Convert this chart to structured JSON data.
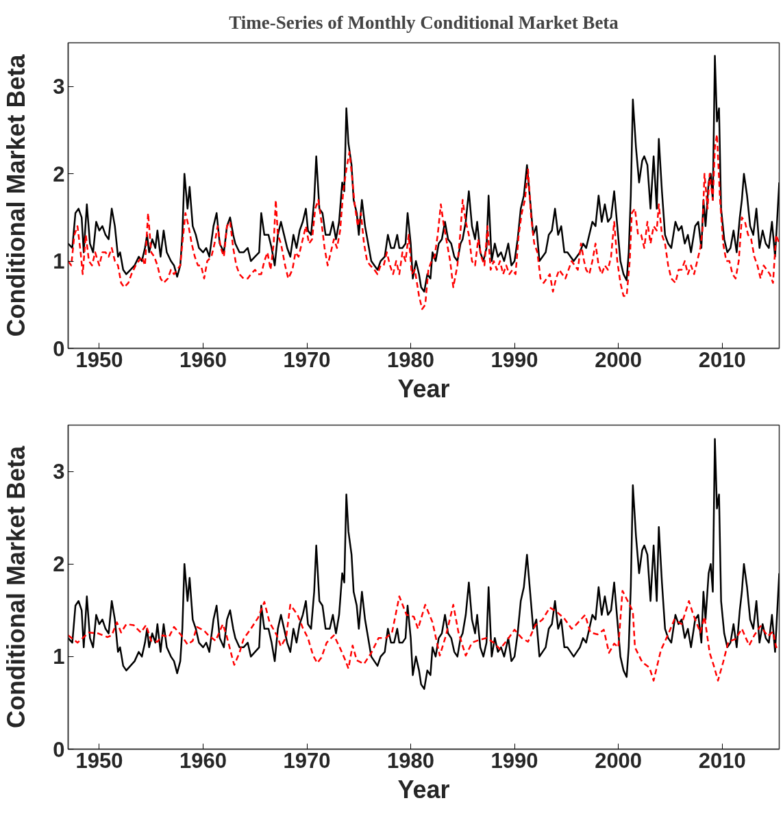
{
  "chart_data": [
    {
      "type": "line",
      "title": "Time-Series of Monthly Conditional Market Beta",
      "xlabel": "Year",
      "ylabel": "Conditional Market Beta",
      "xlim": [
        1947,
        2015.5
      ],
      "ylim": [
        0,
        3.5
      ],
      "xticks": [
        1950,
        1960,
        1970,
        1980,
        1990,
        2000,
        2010
      ],
      "yticks": [
        0,
        1,
        2,
        3
      ],
      "grid": false,
      "marker": "none",
      "series": [
        {
          "color": "#000000",
          "line_style": "solid",
          "x": [
            1947.0,
            1947.4,
            1947.7,
            1948.0,
            1948.3,
            1948.5,
            1948.8,
            1949.1,
            1949.4,
            1949.7,
            1950.0,
            1950.3,
            1950.6,
            1950.9,
            1951.2,
            1951.5,
            1951.8,
            1952.0,
            1952.3,
            1952.6,
            1953.0,
            1953.4,
            1953.8,
            1954.1,
            1954.4,
            1954.6,
            1954.8,
            1955.1,
            1955.4,
            1955.6,
            1955.9,
            1956.2,
            1956.5,
            1956.9,
            1957.2,
            1957.5,
            1957.8,
            1958.0,
            1958.2,
            1958.5,
            1958.7,
            1959.0,
            1959.3,
            1959.6,
            1960.0,
            1960.3,
            1960.6,
            1961.0,
            1961.3,
            1961.6,
            1962.0,
            1962.3,
            1962.6,
            1962.9,
            1963.1,
            1963.5,
            1963.9,
            1964.3,
            1964.6,
            1965.0,
            1965.4,
            1965.6,
            1965.9,
            1966.3,
            1966.6,
            1966.9,
            1967.2,
            1967.5,
            1967.8,
            1968.1,
            1968.4,
            1968.7,
            1969.0,
            1969.3,
            1969.6,
            1969.9,
            1970.1,
            1970.4,
            1970.7,
            1970.9,
            1971.2,
            1971.5,
            1971.8,
            1972.2,
            1972.5,
            1972.8,
            1973.1,
            1973.4,
            1973.6,
            1973.8,
            1974.0,
            1974.3,
            1974.5,
            1974.8,
            1975.0,
            1975.3,
            1975.6,
            1975.9,
            1976.2,
            1976.5,
            1976.8,
            1977.1,
            1977.5,
            1977.8,
            1978.1,
            1978.4,
            1978.7,
            1978.9,
            1979.2,
            1979.5,
            1979.7,
            1980.0,
            1980.2,
            1980.5,
            1980.8,
            1981.0,
            1981.3,
            1981.6,
            1981.9,
            1982.1,
            1982.4,
            1982.7,
            1983.0,
            1983.3,
            1983.6,
            1983.9,
            1984.2,
            1984.5,
            1984.8,
            1985.0,
            1985.3,
            1985.6,
            1985.9,
            1986.2,
            1986.4,
            1986.7,
            1987.0,
            1987.3,
            1987.5,
            1987.8,
            1988.1,
            1988.4,
            1988.7,
            1989.0,
            1989.4,
            1989.7,
            1990.0,
            1990.3,
            1990.6,
            1990.9,
            1991.2,
            1991.5,
            1991.8,
            1992.1,
            1992.4,
            1992.7,
            1993.0,
            1993.3,
            1993.6,
            1993.9,
            1994.2,
            1994.5,
            1994.8,
            1995.1,
            1995.4,
            1995.7,
            1996.0,
            1996.3,
            1996.6,
            1996.9,
            1997.2,
            1997.5,
            1997.8,
            1998.1,
            1998.4,
            1998.7,
            1999.0,
            1999.3,
            1999.6,
            1999.9,
            2000.2,
            2000.5,
            2000.8,
            2001.0,
            2001.2,
            2001.4,
            2001.7,
            2002.0,
            2002.3,
            2002.5,
            2002.8,
            2003.1,
            2003.4,
            2003.7,
            2003.9,
            2004.2,
            2004.5,
            2004.8,
            2005.1,
            2005.5,
            2005.8,
            2006.1,
            2006.4,
            2006.7,
            2007.0,
            2007.4,
            2007.7,
            2008.0,
            2008.2,
            2008.4,
            2008.7,
            2008.9,
            2009.1,
            2009.3,
            2009.5,
            2009.7,
            2009.9,
            2010.2,
            2010.5,
            2010.8,
            2011.1,
            2011.4,
            2011.7,
            2011.9,
            2012.1,
            2012.4,
            2012.7,
            2013.0,
            2013.3,
            2013.6,
            2013.9,
            2014.2,
            2014.5,
            2014.8,
            2015.1,
            2015.5
          ],
          "values": [
            1.2,
            1.15,
            1.55,
            1.6,
            1.5,
            1.1,
            1.65,
            1.2,
            1.1,
            1.45,
            1.35,
            1.4,
            1.3,
            1.25,
            1.6,
            1.4,
            1.05,
            1.1,
            0.9,
            0.85,
            0.9,
            0.95,
            1.05,
            1.0,
            1.15,
            1.3,
            1.1,
            1.25,
            1.15,
            1.35,
            1.05,
            1.35,
            1.1,
            1.0,
            0.95,
            0.82,
            0.95,
            1.3,
            2.0,
            1.6,
            1.85,
            1.4,
            1.3,
            1.15,
            1.1,
            1.15,
            1.05,
            1.4,
            1.55,
            1.2,
            1.1,
            1.4,
            1.5,
            1.3,
            1.2,
            1.1,
            1.1,
            1.15,
            1.0,
            1.05,
            1.1,
            1.55,
            1.3,
            1.3,
            1.15,
            0.95,
            1.3,
            1.45,
            1.3,
            1.15,
            1.05,
            1.3,
            1.15,
            1.35,
            1.45,
            1.6,
            1.35,
            1.3,
            1.7,
            2.2,
            1.6,
            1.55,
            1.3,
            1.3,
            1.45,
            1.25,
            1.45,
            1.9,
            1.8,
            2.75,
            2.35,
            2.1,
            1.7,
            1.55,
            1.3,
            1.7,
            1.4,
            1.2,
            1.0,
            0.95,
            0.9,
            1.0,
            1.05,
            1.3,
            1.15,
            1.15,
            1.3,
            1.15,
            1.15,
            1.2,
            1.55,
            1.2,
            0.8,
            1.0,
            0.85,
            0.7,
            0.65,
            0.85,
            0.8,
            1.1,
            1.0,
            1.2,
            1.25,
            1.45,
            1.25,
            1.2,
            1.05,
            1.0,
            1.2,
            1.25,
            1.45,
            1.8,
            1.4,
            1.25,
            1.45,
            1.1,
            1.0,
            1.15,
            1.75,
            1.0,
            1.2,
            1.05,
            1.1,
            1.0,
            1.2,
            0.95,
            1.0,
            1.25,
            1.6,
            1.75,
            2.1,
            1.7,
            1.3,
            1.4,
            1.0,
            1.05,
            1.1,
            1.3,
            1.35,
            1.6,
            1.3,
            1.4,
            1.1,
            1.1,
            1.05,
            1.0,
            1.05,
            1.1,
            1.2,
            1.15,
            1.3,
            1.45,
            1.4,
            1.75,
            1.45,
            1.65,
            1.45,
            1.5,
            1.8,
            1.4,
            1.0,
            0.85,
            0.78,
            1.1,
            1.75,
            2.85,
            2.3,
            1.9,
            2.15,
            2.2,
            2.1,
            1.6,
            2.2,
            1.6,
            2.4,
            1.8,
            1.3,
            1.2,
            1.15,
            1.45,
            1.35,
            1.4,
            1.2,
            1.3,
            1.1,
            1.4,
            1.45,
            1.15,
            1.7,
            1.4,
            1.9,
            2.0,
            1.7,
            3.35,
            2.6,
            2.75,
            1.6,
            1.25,
            1.1,
            1.15,
            1.35,
            1.1,
            1.5,
            1.7,
            2.0,
            1.75,
            1.4,
            1.3,
            1.6,
            1.15,
            1.35,
            1.2,
            1.15,
            1.45,
            1.05,
            1.9
          ]
        },
        {
          "color": "#ff0000",
          "line_style": "dashed",
          "x": [
            1947.0,
            1947.3,
            1947.6,
            1947.9,
            1948.2,
            1948.4,
            1948.7,
            1949.0,
            1949.3,
            1949.6,
            1950.0,
            1950.3,
            1950.6,
            1950.9,
            1951.2,
            1951.5,
            1951.8,
            1952.1,
            1952.4,
            1952.8,
            1953.1,
            1953.5,
            1953.8,
            1954.1,
            1954.4,
            1954.7,
            1955.0,
            1955.3,
            1955.6,
            1955.9,
            1956.2,
            1956.6,
            1956.9,
            1957.2,
            1957.5,
            1957.8,
            1958.0,
            1958.3,
            1958.6,
            1958.9,
            1959.2,
            1959.5,
            1959.8,
            1960.1,
            1960.4,
            1960.8,
            1961.1,
            1961.4,
            1961.7,
            1962.0,
            1962.3,
            1962.6,
            1962.9,
            1963.2,
            1963.5,
            1963.9,
            1964.3,
            1964.6,
            1965.0,
            1965.3,
            1965.6,
            1965.9,
            1966.2,
            1966.5,
            1966.8,
            1967.0,
            1967.2,
            1967.5,
            1967.9,
            1968.2,
            1968.6,
            1968.9,
            1969.2,
            1969.5,
            1969.9,
            1970.2,
            1970.5,
            1970.8,
            1971.1,
            1971.4,
            1971.7,
            1972.0,
            1972.3,
            1972.6,
            1972.9,
            1973.2,
            1973.5,
            1973.8,
            1974.1,
            1974.4,
            1974.6,
            1974.9,
            1975.2,
            1975.5,
            1975.8,
            1976.1,
            1976.5,
            1976.8,
            1977.1,
            1977.4,
            1977.7,
            1978.0,
            1978.3,
            1978.6,
            1978.9,
            1979.2,
            1979.5,
            1979.8,
            1980.1,
            1980.4,
            1980.8,
            1981.1,
            1981.4,
            1981.7,
            1982.0,
            1982.3,
            1982.6,
            1982.9,
            1983.2,
            1983.5,
            1983.8,
            1984.1,
            1984.5,
            1984.8,
            1985.0,
            1985.3,
            1985.6,
            1985.9,
            1986.2,
            1986.5,
            1986.8,
            1987.1,
            1987.4,
            1987.7,
            1988.0,
            1988.3,
            1988.6,
            1988.9,
            1989.2,
            1989.5,
            1989.8,
            1990.1,
            1990.4,
            1990.7,
            1991.0,
            1991.3,
            1991.6,
            1991.9,
            1992.2,
            1992.5,
            1992.8,
            1993.1,
            1993.4,
            1993.7,
            1994.0,
            1994.3,
            1994.6,
            1994.9,
            1995.2,
            1995.5,
            1995.8,
            1996.1,
            1996.4,
            1996.7,
            1996.9,
            1997.2,
            1997.5,
            1997.8,
            1998.1,
            1998.4,
            1998.7,
            1999.0,
            1999.3,
            1999.6,
            1999.9,
            2000.2,
            2000.5,
            2000.8,
            2001.1,
            2001.3,
            2001.6,
            2001.9,
            2002.2,
            2002.5,
            2002.8,
            2003.1,
            2003.4,
            2003.7,
            2003.9,
            2004.2,
            2004.5,
            2004.8,
            2005.1,
            2005.5,
            2005.8,
            2006.1,
            2006.4,
            2006.7,
            2007.0,
            2007.3,
            2007.6,
            2007.9,
            2008.1,
            2008.3,
            2008.6,
            2008.8,
            2009.1,
            2009.3,
            2009.5,
            2009.8,
            2010.1,
            2010.4,
            2010.7,
            2011.0,
            2011.3,
            2011.6,
            2011.9,
            2012.2,
            2012.5,
            2012.8,
            2013.1,
            2013.4,
            2013.7,
            2014.0,
            2014.3,
            2014.6,
            2014.9,
            2015.2,
            2015.5
          ],
          "values": [
            1.0,
            0.95,
            1.3,
            1.4,
            1.1,
            0.85,
            1.3,
            1.0,
            0.95,
            1.1,
            0.95,
            1.1,
            1.1,
            1.05,
            1.15,
            1.0,
            0.95,
            0.75,
            0.7,
            0.75,
            0.85,
            0.95,
            1.0,
            1.05,
            0.95,
            1.55,
            1.1,
            1.05,
            0.95,
            0.8,
            0.75,
            0.8,
            0.9,
            0.85,
            0.9,
            0.95,
            1.2,
            1.55,
            1.4,
            1.2,
            1.05,
            0.95,
            0.95,
            0.8,
            1.0,
            1.05,
            1.2,
            1.4,
            1.15,
            1.05,
            1.4,
            1.45,
            1.15,
            0.95,
            0.85,
            0.8,
            0.8,
            0.85,
            0.9,
            0.85,
            0.85,
            1.0,
            1.1,
            0.9,
            1.2,
            1.7,
            1.3,
            1.2,
            0.95,
            0.8,
            0.9,
            1.1,
            1.05,
            1.2,
            1.4,
            1.2,
            1.25,
            1.6,
            1.7,
            1.45,
            1.15,
            0.95,
            1.1,
            1.25,
            1.15,
            1.35,
            1.8,
            2.05,
            2.25,
            1.9,
            1.65,
            1.4,
            1.55,
            1.2,
            1.0,
            0.95,
            0.9,
            0.85,
            0.95,
            0.95,
            1.1,
            0.95,
            0.85,
            1.0,
            0.85,
            1.1,
            1.0,
            1.3,
            0.85,
            0.9,
            0.6,
            0.45,
            0.5,
            0.9,
            1.0,
            1.05,
            1.3,
            1.65,
            1.4,
            1.2,
            1.0,
            0.7,
            0.95,
            1.35,
            1.7,
            1.45,
            1.3,
            1.0,
            0.95,
            1.25,
            1.05,
            0.95,
            1.4,
            0.9,
            1.0,
            0.9,
            1.0,
            0.85,
            0.95,
            0.85,
            0.9,
            0.85,
            1.3,
            1.55,
            1.7,
            2.05,
            1.5,
            1.2,
            1.1,
            0.8,
            0.75,
            0.8,
            0.85,
            0.65,
            0.8,
            0.9,
            0.85,
            0.8,
            0.9,
            1.0,
            0.95,
            0.9,
            1.2,
            1.0,
            0.9,
            0.85,
            1.0,
            1.2,
            0.95,
            0.85,
            0.95,
            0.9,
            1.05,
            1.45,
            1.0,
            0.75,
            0.6,
            0.6,
            1.0,
            1.55,
            1.6,
            1.3,
            1.3,
            1.15,
            1.45,
            1.2,
            1.4,
            1.35,
            1.65,
            1.3,
            1.2,
            0.95,
            0.8,
            0.75,
            0.9,
            0.9,
            1.0,
            0.85,
            0.95,
            0.85,
            1.0,
            1.15,
            1.35,
            2.0,
            1.6,
            2.0,
            1.7,
            2.3,
            2.45,
            1.7,
            1.2,
            1.0,
            1.0,
            0.85,
            0.8,
            1.0,
            1.5,
            1.45,
            1.3,
            1.25,
            1.05,
            0.95,
            0.8,
            0.95,
            0.9,
            0.85,
            0.75,
            1.3,
            1.2
          ]
        }
      ]
    },
    {
      "type": "line",
      "xlabel": "Year",
      "ylabel": "Conditional Market Beta",
      "xlim": [
        1947,
        2015.5
      ],
      "ylim": [
        0,
        3.5
      ],
      "xticks": [
        1950,
        1960,
        1970,
        1980,
        1990,
        2000,
        2010
      ],
      "yticks": [
        0,
        1,
        2,
        3
      ],
      "grid": false,
      "marker": "none",
      "series": [
        {
          "color": "#000000",
          "line_style": "solid",
          "x": [
            1947.0,
            1947.4,
            1947.7,
            1948.0,
            1948.3,
            1948.5,
            1948.8,
            1949.1,
            1949.4,
            1949.7,
            1950.0,
            1950.3,
            1950.6,
            1950.9,
            1951.2,
            1951.5,
            1951.8,
            1952.0,
            1952.3,
            1952.6,
            1953.0,
            1953.4,
            1953.8,
            1954.1,
            1954.4,
            1954.6,
            1954.8,
            1955.1,
            1955.4,
            1955.6,
            1955.9,
            1956.2,
            1956.5,
            1956.9,
            1957.2,
            1957.5,
            1957.8,
            1958.0,
            1958.2,
            1958.5,
            1958.7,
            1959.0,
            1959.3,
            1959.6,
            1960.0,
            1960.3,
            1960.6,
            1961.0,
            1961.3,
            1961.6,
            1962.0,
            1962.3,
            1962.6,
            1962.9,
            1963.1,
            1963.5,
            1963.9,
            1964.3,
            1964.6,
            1965.0,
            1965.4,
            1965.6,
            1965.9,
            1966.3,
            1966.6,
            1966.9,
            1967.2,
            1967.5,
            1967.8,
            1968.1,
            1968.4,
            1968.7,
            1969.0,
            1969.3,
            1969.6,
            1969.9,
            1970.1,
            1970.4,
            1970.7,
            1970.9,
            1971.2,
            1971.5,
            1971.8,
            1972.2,
            1972.5,
            1972.8,
            1973.1,
            1973.4,
            1973.6,
            1973.8,
            1974.0,
            1974.3,
            1974.5,
            1974.8,
            1975.0,
            1975.3,
            1975.6,
            1975.9,
            1976.2,
            1976.5,
            1976.8,
            1977.1,
            1977.5,
            1977.8,
            1978.1,
            1978.4,
            1978.7,
            1978.9,
            1979.2,
            1979.5,
            1979.7,
            1980.0,
            1980.2,
            1980.5,
            1980.8,
            1981.0,
            1981.3,
            1981.6,
            1981.9,
            1982.1,
            1982.4,
            1982.7,
            1983.0,
            1983.3,
            1983.6,
            1983.9,
            1984.2,
            1984.5,
            1984.8,
            1985.0,
            1985.3,
            1985.6,
            1985.9,
            1986.2,
            1986.4,
            1986.7,
            1987.0,
            1987.3,
            1987.5,
            1987.8,
            1988.1,
            1988.4,
            1988.7,
            1989.0,
            1989.4,
            1989.7,
            1990.0,
            1990.3,
            1990.6,
            1990.9,
            1991.2,
            1991.5,
            1991.8,
            1992.1,
            1992.4,
            1992.7,
            1993.0,
            1993.3,
            1993.6,
            1993.9,
            1994.2,
            1994.5,
            1994.8,
            1995.1,
            1995.4,
            1995.7,
            1996.0,
            1996.3,
            1996.6,
            1996.9,
            1997.2,
            1997.5,
            1997.8,
            1998.1,
            1998.4,
            1998.7,
            1999.0,
            1999.3,
            1999.6,
            1999.9,
            2000.2,
            2000.5,
            2000.8,
            2001.0,
            2001.2,
            2001.4,
            2001.7,
            2002.0,
            2002.3,
            2002.5,
            2002.8,
            2003.1,
            2003.4,
            2003.7,
            2003.9,
            2004.2,
            2004.5,
            2004.8,
            2005.1,
            2005.5,
            2005.8,
            2006.1,
            2006.4,
            2006.7,
            2007.0,
            2007.4,
            2007.7,
            2008.0,
            2008.2,
            2008.4,
            2008.7,
            2008.9,
            2009.1,
            2009.3,
            2009.5,
            2009.7,
            2009.9,
            2010.2,
            2010.5,
            2010.8,
            2011.1,
            2011.4,
            2011.7,
            2011.9,
            2012.1,
            2012.4,
            2012.7,
            2013.0,
            2013.3,
            2013.6,
            2013.9,
            2014.2,
            2014.5,
            2014.8,
            2015.1,
            2015.5
          ],
          "values": [
            1.2,
            1.15,
            1.55,
            1.6,
            1.5,
            1.1,
            1.65,
            1.2,
            1.1,
            1.45,
            1.35,
            1.4,
            1.3,
            1.25,
            1.6,
            1.4,
            1.05,
            1.1,
            0.9,
            0.85,
            0.9,
            0.95,
            1.05,
            1.0,
            1.15,
            1.3,
            1.1,
            1.25,
            1.15,
            1.35,
            1.05,
            1.35,
            1.1,
            1.0,
            0.95,
            0.82,
            0.95,
            1.3,
            2.0,
            1.6,
            1.85,
            1.4,
            1.3,
            1.15,
            1.1,
            1.15,
            1.05,
            1.4,
            1.55,
            1.2,
            1.1,
            1.4,
            1.5,
            1.3,
            1.2,
            1.1,
            1.1,
            1.15,
            1.0,
            1.05,
            1.1,
            1.55,
            1.3,
            1.3,
            1.15,
            0.95,
            1.3,
            1.45,
            1.3,
            1.15,
            1.05,
            1.3,
            1.15,
            1.35,
            1.45,
            1.6,
            1.35,
            1.3,
            1.7,
            2.2,
            1.6,
            1.55,
            1.3,
            1.3,
            1.45,
            1.25,
            1.45,
            1.9,
            1.8,
            2.75,
            2.35,
            2.1,
            1.7,
            1.55,
            1.3,
            1.7,
            1.4,
            1.2,
            1.0,
            0.95,
            0.9,
            1.0,
            1.05,
            1.3,
            1.15,
            1.15,
            1.3,
            1.15,
            1.15,
            1.2,
            1.55,
            1.2,
            0.8,
            1.0,
            0.85,
            0.7,
            0.65,
            0.85,
            0.8,
            1.1,
            1.0,
            1.2,
            1.25,
            1.45,
            1.25,
            1.2,
            1.05,
            1.0,
            1.2,
            1.25,
            1.45,
            1.8,
            1.4,
            1.25,
            1.45,
            1.1,
            1.0,
            1.15,
            1.75,
            1.0,
            1.2,
            1.05,
            1.1,
            1.0,
            1.2,
            0.95,
            1.0,
            1.25,
            1.6,
            1.75,
            2.1,
            1.7,
            1.3,
            1.4,
            1.0,
            1.05,
            1.1,
            1.3,
            1.35,
            1.6,
            1.3,
            1.4,
            1.1,
            1.1,
            1.05,
            1.0,
            1.05,
            1.1,
            1.2,
            1.15,
            1.3,
            1.45,
            1.4,
            1.75,
            1.45,
            1.65,
            1.45,
            1.5,
            1.8,
            1.4,
            1.0,
            0.85,
            0.78,
            1.1,
            1.75,
            2.85,
            2.3,
            1.9,
            2.15,
            2.2,
            2.1,
            1.6,
            2.2,
            1.6,
            2.4,
            1.8,
            1.3,
            1.2,
            1.15,
            1.45,
            1.35,
            1.4,
            1.2,
            1.3,
            1.1,
            1.4,
            1.45,
            1.15,
            1.7,
            1.4,
            1.9,
            2.0,
            1.7,
            3.35,
            2.6,
            2.75,
            1.6,
            1.25,
            1.1,
            1.15,
            1.35,
            1.1,
            1.5,
            1.7,
            2.0,
            1.75,
            1.4,
            1.3,
            1.6,
            1.15,
            1.35,
            1.2,
            1.15,
            1.45,
            1.05,
            1.9
          ]
        },
        {
          "color": "#ff0000",
          "line_style": "dashed",
          "x": [
            1947.0,
            1947.9,
            1949.0,
            1949.9,
            1950.8,
            1951.2,
            1951.7,
            1952.1,
            1952.6,
            1953.3,
            1954.0,
            1954.5,
            1955.0,
            1955.6,
            1956.1,
            1956.7,
            1957.2,
            1957.9,
            1958.5,
            1959.0,
            1959.4,
            1960.1,
            1960.5,
            1961.2,
            1961.9,
            1962.3,
            1962.8,
            1963.0,
            1963.5,
            1963.9,
            1964.6,
            1965.3,
            1965.9,
            1966.4,
            1967.1,
            1967.5,
            1968.0,
            1968.4,
            1969.1,
            1969.6,
            1970.1,
            1970.6,
            1971.0,
            1971.4,
            1971.9,
            1972.6,
            1973.2,
            1973.7,
            1974.0,
            1974.4,
            1974.8,
            1975.5,
            1976.2,
            1976.9,
            1977.6,
            1978.2,
            1978.9,
            1979.6,
            1980.3,
            1980.7,
            1981.4,
            1982.1,
            1982.8,
            1983.4,
            1984.1,
            1984.6,
            1985.3,
            1985.9,
            1986.6,
            1987.3,
            1988.0,
            1988.6,
            1989.3,
            1990.0,
            1990.7,
            1991.3,
            1992.0,
            1992.7,
            1993.4,
            1994.1,
            1994.8,
            1995.5,
            1995.9,
            1996.8,
            1997.3,
            1998.0,
            1998.6,
            1999.1,
            1999.6,
            2000.0,
            2000.4,
            2000.9,
            2001.4,
            2001.6,
            2002.3,
            2003.0,
            2003.4,
            2004.1,
            2004.8,
            2005.4,
            2006.1,
            2006.8,
            2007.2,
            2007.9,
            2008.3,
            2008.8,
            2009.2,
            2009.6,
            2010.1,
            2010.6,
            2011.3,
            2011.9,
            2012.6,
            2013.1,
            2013.7,
            2014.4,
            2014.9,
            2015.2,
            2015.5
          ],
          "values": [
            1.23,
            1.15,
            1.26,
            1.25,
            1.21,
            1.23,
            1.37,
            1.26,
            1.35,
            1.34,
            1.26,
            1.34,
            1.17,
            1.16,
            1.23,
            1.21,
            1.32,
            1.23,
            1.13,
            1.17,
            1.32,
            1.28,
            1.23,
            1.17,
            1.35,
            1.21,
            0.99,
            0.91,
            1.04,
            1.19,
            1.3,
            1.42,
            1.59,
            1.37,
            1.23,
            1.11,
            1.21,
            1.56,
            1.45,
            1.31,
            1.2,
            1.01,
            0.93,
            0.99,
            1.15,
            1.23,
            1.09,
            0.96,
            0.87,
            1.12,
            0.96,
            0.92,
            1.04,
            1.2,
            1.2,
            1.26,
            1.65,
            1.45,
            1.43,
            1.3,
            1.56,
            1.37,
            1.01,
            1.23,
            1.56,
            1.26,
            1.01,
            1.15,
            1.18,
            1.2,
            1.15,
            1.08,
            1.18,
            1.29,
            1.2,
            1.16,
            1.34,
            1.4,
            1.53,
            1.48,
            1.41,
            1.3,
            1.34,
            1.45,
            1.26,
            1.24,
            1.29,
            1.04,
            1.14,
            1.1,
            1.71,
            1.6,
            1.49,
            1.1,
            0.94,
            0.88,
            0.74,
            1.07,
            1.24,
            1.4,
            1.35,
            1.6,
            1.46,
            1.26,
            1.43,
            1.04,
            0.9,
            0.74,
            0.94,
            1.16,
            1.19,
            1.3,
            1.12,
            1.23,
            1.33,
            1.22,
            1.27,
            1.1,
            1.12
          ]
        }
      ]
    }
  ]
}
